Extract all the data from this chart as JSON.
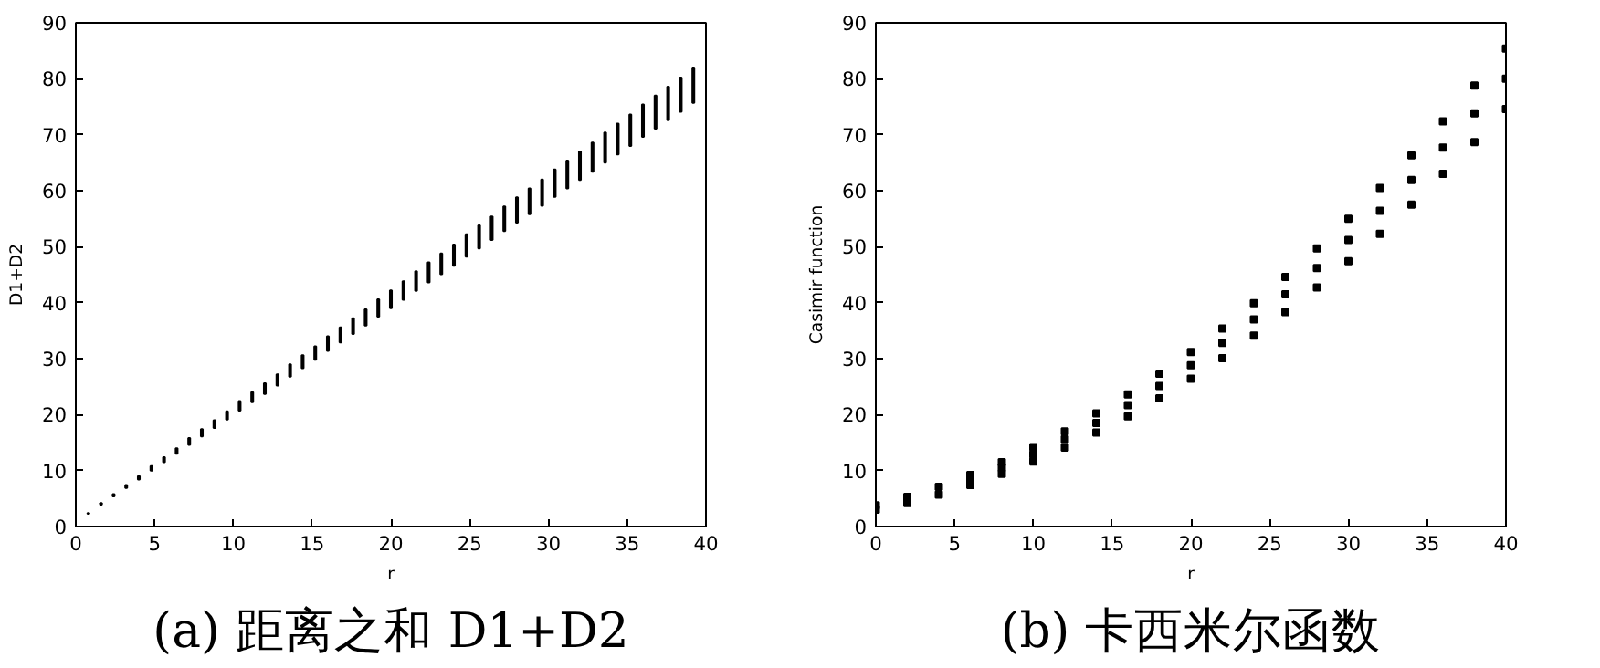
{
  "chart_data": [
    {
      "type": "bar",
      "title": "(a) 距离之和 D1+D2",
      "xlabel": "r",
      "ylabel": "D1+D2",
      "xlim": [
        0,
        40
      ],
      "xticks": [
        0,
        5,
        10,
        15,
        20,
        25,
        30,
        35,
        40
      ],
      "ylim": [
        0,
        90
      ],
      "yticks": [
        0,
        10,
        20,
        30,
        40,
        50,
        60,
        70,
        80,
        90
      ],
      "grid": false,
      "x": [
        0.8,
        1.6,
        2.4,
        3.2,
        4.0,
        4.8,
        5.6,
        6.4,
        7.2,
        8.0,
        8.8,
        9.6,
        10.4,
        11.2,
        12.0,
        12.8,
        13.6,
        14.4,
        15.2,
        16.0,
        16.8,
        17.6,
        18.4,
        19.2,
        20.0,
        20.8,
        21.6,
        22.4,
        23.2,
        24.0,
        24.8,
        25.6,
        26.4,
        27.2,
        28.0,
        28.8,
        29.6,
        30.4,
        31.2,
        32.0,
        32.8,
        33.6,
        34.4,
        35.2,
        36.0,
        36.8,
        37.6,
        38.4,
        39.2
      ],
      "base": [
        2.3,
        3.9,
        5.4,
        6.9,
        8.4,
        10.0,
        11.5,
        13.0,
        14.6,
        16.1,
        17.6,
        19.1,
        20.7,
        22.2,
        23.7,
        25.2,
        26.8,
        28.3,
        29.8,
        31.4,
        32.9,
        34.4,
        35.9,
        37.5,
        39.0,
        40.5,
        42.1,
        43.6,
        45.1,
        46.6,
        48.2,
        49.7,
        51.2,
        52.8,
        54.3,
        55.8,
        57.3,
        58.9,
        60.4,
        61.9,
        63.4,
        65.0,
        66.5,
        68.0,
        69.6,
        71.1,
        72.6,
        74.1,
        75.7
      ],
      "values": [
        0.1,
        0.3,
        0.4,
        0.5,
        0.6,
        0.8,
        0.9,
        1.0,
        1.2,
        1.3,
        1.4,
        1.5,
        1.7,
        1.8,
        1.9,
        2.0,
        2.2,
        2.3,
        2.4,
        2.6,
        2.7,
        2.8,
        2.9,
        3.1,
        3.2,
        3.3,
        3.5,
        3.6,
        3.7,
        3.8,
        4.0,
        4.1,
        4.2,
        4.4,
        4.5,
        4.6,
        4.7,
        4.9,
        5.0,
        5.1,
        5.2,
        5.4,
        5.5,
        5.6,
        5.8,
        5.9,
        6.0,
        6.1,
        6.3
      ],
      "color": "#000000"
    },
    {
      "type": "scatter",
      "title": "(b) 卡西米尔函数",
      "xlabel": "r",
      "ylabel": "Casimir function",
      "xlim": [
        0,
        40
      ],
      "xticks": [
        0,
        5,
        10,
        15,
        20,
        25,
        30,
        35,
        40
      ],
      "ylim": [
        0,
        90
      ],
      "yticks": [
        0,
        10,
        20,
        30,
        40,
        50,
        60,
        70,
        80,
        90
      ],
      "grid": false,
      "marker": "square",
      "x": [
        0,
        2,
        4,
        6,
        8,
        10,
        12,
        14,
        16,
        18,
        20,
        22,
        24,
        26,
        28,
        30,
        32,
        34,
        36,
        38,
        40
      ],
      "series": [
        {
          "color": "#000000",
          "values": [
            3.8,
            5.3,
            7.1,
            9.2,
            11.5,
            14.2,
            17.0,
            20.2,
            23.6,
            27.3,
            31.2,
            35.4,
            39.9,
            44.6,
            49.7,
            55.0,
            60.5,
            66.3,
            72.4,
            78.8,
            85.4
          ]
        },
        {
          "color": "#000000",
          "values": [
            null,
            null,
            null,
            8.3,
            10.5,
            12.9,
            15.6,
            18.5,
            21.7,
            25.1,
            28.8,
            32.8,
            37.0,
            41.5,
            46.2,
            51.2,
            56.4,
            61.9,
            67.7,
            73.8,
            80.0
          ]
        },
        {
          "color": "#000000",
          "values": [
            3.0,
            4.2,
            5.7,
            7.4,
            9.4,
            11.6,
            14.1,
            16.8,
            19.7,
            22.9,
            26.4,
            30.1,
            34.1,
            38.3,
            42.7,
            47.4,
            52.3,
            57.5,
            63.0,
            68.7,
            74.6
          ]
        }
      ]
    }
  ]
}
